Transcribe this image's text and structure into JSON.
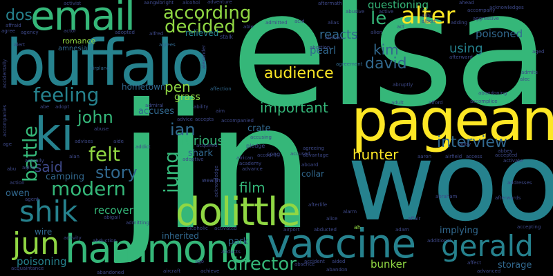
{
  "background": "#000000",
  "palette": {
    "purple": "#440154",
    "indigo": "#3e4989",
    "blue": "#31688e",
    "teal": "#26828e",
    "green": "#35b779",
    "lime": "#90d743",
    "yellow": "#fde725"
  },
  "words": [
    {
      "text": "elsa",
      "color": "#35b779",
      "vertical": false
    },
    {
      "text": "jin",
      "color": "#35b779",
      "vertical": false
    },
    {
      "text": "woo",
      "color": "#26828e",
      "vertical": false
    },
    {
      "text": "buffalo",
      "color": "#26828e",
      "vertical": false
    },
    {
      "text": "pageant",
      "color": "#fde725",
      "vertical": false
    },
    {
      "text": "email",
      "color": "#35b779",
      "vertical": false
    },
    {
      "text": "vaccine",
      "color": "#26828e",
      "vertical": false
    },
    {
      "text": "hammond",
      "color": "#35b779",
      "vertical": false
    },
    {
      "text": "ki",
      "color": "#26828e",
      "vertical": false
    },
    {
      "text": "dolittle",
      "color": "#90d743",
      "vertical": false
    },
    {
      "text": "jun",
      "color": "#90d743",
      "vertical": false
    },
    {
      "text": "shik",
      "color": "#26828e",
      "vertical": false
    },
    {
      "text": "gerald",
      "color": "#26828e",
      "vertical": false
    },
    {
      "text": "according",
      "color": "#90d743",
      "vertical": false
    },
    {
      "text": "decided",
      "color": "#90d743",
      "vertical": false
    },
    {
      "text": "alter",
      "color": "#fde725",
      "vertical": false
    },
    {
      "text": "feeling",
      "color": "#26828e",
      "vertical": false
    },
    {
      "text": "audience",
      "color": "#fde725",
      "vertical": false
    },
    {
      "text": "important",
      "color": "#35b779",
      "vertical": false
    },
    {
      "text": "modern",
      "color": "#35b779",
      "vertical": false
    },
    {
      "text": "director",
      "color": "#35b779",
      "vertical": false
    },
    {
      "text": "interview",
      "color": "#31688e",
      "vertical": false
    },
    {
      "text": "hunter",
      "color": "#fde725",
      "vertical": false
    },
    {
      "text": "felt",
      "color": "#90d743",
      "vertical": false
    },
    {
      "text": "story",
      "color": "#31688e",
      "vertical": false
    },
    {
      "text": "said",
      "color": "#3e4989",
      "vertical": false
    },
    {
      "text": "ian",
      "color": "#31688e",
      "vertical": false
    },
    {
      "text": "john",
      "color": "#35b779",
      "vertical": false
    },
    {
      "text": "jung",
      "color": "#35b779",
      "vertical": true
    },
    {
      "text": "battle",
      "color": "#35b779",
      "vertical": true
    },
    {
      "text": "dos",
      "color": "#26828e",
      "vertical": false
    },
    {
      "text": "kim",
      "color": "#31688e",
      "vertical": false
    },
    {
      "text": "david",
      "color": "#31688e",
      "vertical": false
    },
    {
      "text": "le",
      "color": "#35b779",
      "vertical": false
    },
    {
      "text": "pen",
      "color": "#90d743",
      "vertical": false
    },
    {
      "text": "film",
      "color": "#35b779",
      "vertical": false
    },
    {
      "text": "furious",
      "color": "#35b779",
      "vertical": false
    },
    {
      "text": "reacts",
      "color": "#31688e",
      "vertical": false
    },
    {
      "text": "using",
      "color": "#26828e",
      "vertical": false
    },
    {
      "text": "questioning",
      "color": "#35b779",
      "vertical": false
    },
    {
      "text": "poisoned",
      "color": "#31688e",
      "vertical": false
    },
    {
      "text": "pearl",
      "color": "#31688e",
      "vertical": false
    },
    {
      "text": "bunker",
      "color": "#90d743",
      "vertical": false
    },
    {
      "text": "recovery",
      "color": "#35b779",
      "vertical": false
    },
    {
      "text": "camping",
      "color": "#31688e",
      "vertical": false
    },
    {
      "text": "grass",
      "color": "#90d743",
      "vertical": false
    },
    {
      "text": "accuses",
      "color": "#31688e",
      "vertical": false
    },
    {
      "text": "shark",
      "color": "#31688e",
      "vertical": false
    },
    {
      "text": "crate",
      "color": "#31688e",
      "vertical": false
    },
    {
      "text": "inherited",
      "color": "#31688e",
      "vertical": false
    },
    {
      "text": "poisoning",
      "color": "#26828e",
      "vertical": false
    },
    {
      "text": "implying",
      "color": "#31688e",
      "vertical": false
    },
    {
      "text": "storage",
      "color": "#31688e",
      "vertical": false
    },
    {
      "text": "collar",
      "color": "#31688e",
      "vertical": false
    },
    {
      "text": "park",
      "color": "#31688e",
      "vertical": false
    },
    {
      "text": "owen",
      "color": "#31688e",
      "vertical": false
    },
    {
      "text": "wire",
      "color": "#31688e",
      "vertical": false
    },
    {
      "text": "hometown",
      "color": "#31688e",
      "vertical": false
    },
    {
      "text": "relieved",
      "color": "#26828e",
      "vertical": false
    },
    {
      "text": "romance",
      "color": "#90d743",
      "vertical": false
    },
    {
      "text": "amnesia",
      "color": "#31688e",
      "vertical": false
    },
    {
      "text": "activist",
      "color": "#3e4989",
      "vertical": false
    },
    {
      "text": "albright",
      "color": "#3e4989",
      "vertical": false
    },
    {
      "text": "alcohol",
      "color": "#3e4989",
      "vertical": false
    },
    {
      "text": "aftermath",
      "color": "#3e4989",
      "vertical": false
    },
    {
      "text": "abusive",
      "color": "#3e4989",
      "vertical": false
    },
    {
      "text": "ahead",
      "color": "#3e4989",
      "vertical": false
    },
    {
      "text": "acknowledges",
      "color": "#3e4989",
      "vertical": false
    },
    {
      "text": "accompany",
      "color": "#3e4989",
      "vertical": false
    },
    {
      "text": "agree",
      "color": "#3e4989",
      "vertical": false
    },
    {
      "text": "agency",
      "color": "#3e4989",
      "vertical": false
    },
    {
      "text": "adopted",
      "color": "#3e4989",
      "vertical": false
    },
    {
      "text": "alfred",
      "color": "#3e4989",
      "vertical": false
    },
    {
      "text": "admitted",
      "color": "#3e4989",
      "vertical": false
    },
    {
      "text": "alias",
      "color": "#3e4989",
      "vertical": false
    },
    {
      "text": "alerted",
      "color": "#3e4989",
      "vertical": false
    },
    {
      "text": "abortion",
      "color": "#3e4989",
      "vertical": false
    },
    {
      "text": "agrees",
      "color": "#31688e",
      "vertical": false
    },
    {
      "text": "airplane",
      "color": "#31688e",
      "vertical": false
    },
    {
      "text": "affection",
      "color": "#31688e",
      "vertical": false
    },
    {
      "text": "agreement",
      "color": "#31688e",
      "vertical": false
    },
    {
      "text": "afterward",
      "color": "#3e4989",
      "vertical": false
    },
    {
      "text": "abruptly",
      "color": "#3e4989",
      "vertical": false
    },
    {
      "text": "abandoning",
      "color": "#3e4989",
      "vertical": false
    },
    {
      "text": "accomplice",
      "color": "#3e4989",
      "vertical": false
    },
    {
      "text": "afford",
      "color": "#3e4989",
      "vertical": false
    },
    {
      "text": "alec",
      "color": "#3e4989",
      "vertical": false
    },
    {
      "text": "admits",
      "color": "#3e4989",
      "vertical": false
    },
    {
      "text": "adult",
      "color": "#3e4989",
      "vertical": false
    },
    {
      "text": "aged",
      "color": "#3e4989",
      "vertical": false
    },
    {
      "text": "abby",
      "color": "#3e4989",
      "vertical": false
    },
    {
      "text": "abbey",
      "color": "#3e4989",
      "vertical": false
    },
    {
      "text": "accepted",
      "color": "#3e4989",
      "vertical": false
    },
    {
      "text": "activate",
      "color": "#3e4989",
      "vertical": false
    },
    {
      "text": "airfield",
      "color": "#3e4989",
      "vertical": false
    },
    {
      "text": "agreeing",
      "color": "#3e4989",
      "vertical": false
    },
    {
      "text": "advantage",
      "color": "#3e4989",
      "vertical": false
    },
    {
      "text": "aboard",
      "color": "#3e4989",
      "vertical": false
    },
    {
      "text": "african",
      "color": "#3e4989",
      "vertical": false
    },
    {
      "text": "academy",
      "color": "#3e4989",
      "vertical": false
    },
    {
      "text": "advance",
      "color": "#3e4989",
      "vertical": false
    },
    {
      "text": "accused",
      "color": "#3e4989",
      "vertical": false
    },
    {
      "text": "abraham",
      "color": "#3e4989",
      "vertical": false
    },
    {
      "text": "afterwards",
      "color": "#3e4989",
      "vertical": false
    },
    {
      "text": "addresses",
      "color": "#3e4989",
      "vertical": false
    },
    {
      "text": "afterlife",
      "color": "#3e4989",
      "vertical": false
    },
    {
      "text": "alarm",
      "color": "#3e4989",
      "vertical": false
    },
    {
      "text": "alice",
      "color": "#3e4989",
      "vertical": false
    },
    {
      "text": "affair",
      "color": "#3e4989",
      "vertical": false
    },
    {
      "text": "accepting",
      "color": "#3e4989",
      "vertical": false
    },
    {
      "text": "adam",
      "color": "#3e4989",
      "vertical": false
    },
    {
      "text": "ah",
      "color": "#90d743",
      "vertical": false
    },
    {
      "text": "abducted",
      "color": "#3e4989",
      "vertical": false
    },
    {
      "text": "additional",
      "color": "#3e4989",
      "vertical": false
    },
    {
      "text": "affect",
      "color": "#3e4989",
      "vertical": false
    },
    {
      "text": "advanced",
      "color": "#3e4989",
      "vertical": false
    },
    {
      "text": "aided",
      "color": "#3e4989",
      "vertical": false
    },
    {
      "text": "absence",
      "color": "#3e4989",
      "vertical": false
    },
    {
      "text": "abandon",
      "color": "#3e4989",
      "vertical": false
    },
    {
      "text": "accident",
      "color": "#3e4989",
      "vertical": false
    },
    {
      "text": "abducts",
      "color": "#3e4989",
      "vertical": false
    },
    {
      "text": "achieve",
      "color": "#3e4989",
      "vertical": false
    },
    {
      "text": "ago",
      "color": "#3e4989",
      "vertical": false
    },
    {
      "text": "aircraft",
      "color": "#3e4989",
      "vertical": false
    },
    {
      "text": "abandoned",
      "color": "#3e4989",
      "vertical": false
    },
    {
      "text": "acquaintance",
      "color": "#3e4989",
      "vertical": false
    },
    {
      "text": "activity",
      "color": "#3e4989",
      "vertical": false
    },
    {
      "text": "abduction",
      "color": "#3e4989",
      "vertical": false
    },
    {
      "text": "alcoholic",
      "color": "#3e4989",
      "vertical": false
    },
    {
      "text": "activated",
      "color": "#3e4989",
      "vertical": false
    },
    {
      "text": "admitting",
      "color": "#3e4989",
      "vertical": false
    },
    {
      "text": "abigail",
      "color": "#3e4989",
      "vertical": false
    },
    {
      "text": "agent",
      "color": "#3e4989",
      "vertical": false
    },
    {
      "text": "accompanies",
      "color": "#3e4989",
      "vertical": true
    },
    {
      "text": "accidentally",
      "color": "#3e4989",
      "vertical": true
    },
    {
      "text": "abe",
      "color": "#3e4989",
      "vertical": false
    },
    {
      "text": "adopt",
      "color": "#3e4989",
      "vertical": false
    },
    {
      "text": "admiral",
      "color": "#3e4989",
      "vertical": false
    },
    {
      "text": "ability",
      "color": "#3e4989",
      "vertical": false
    },
    {
      "text": "aim",
      "color": "#3e4989",
      "vertical": false
    },
    {
      "text": "advice",
      "color": "#3e4989",
      "vertical": false
    },
    {
      "text": "accepts",
      "color": "#3e4989",
      "vertical": false
    },
    {
      "text": "accompanied",
      "color": "#3e4989",
      "vertical": false
    },
    {
      "text": "accusing",
      "color": "#3e4989",
      "vertical": false
    },
    {
      "text": "abuse",
      "color": "#3e4989",
      "vertical": false
    },
    {
      "text": "aide",
      "color": "#3e4989",
      "vertical": false
    },
    {
      "text": "addict",
      "color": "#3e4989",
      "vertical": false
    },
    {
      "text": "acquired",
      "color": "#3e4989",
      "vertical": false
    },
    {
      "text": "advises",
      "color": "#3e4989",
      "vertical": false
    },
    {
      "text": "adoptive",
      "color": "#3e4989",
      "vertical": false
    },
    {
      "text": "pledge",
      "color": "#3e4989",
      "vertical": false
    },
    {
      "text": "song",
      "color": "#3e4989",
      "vertical": false
    },
    {
      "text": "alan",
      "color": "#3e4989",
      "vertical": false
    },
    {
      "text": "aging",
      "color": "#3e4989",
      "vertical": false
    },
    {
      "text": "abu",
      "color": "#3e4989",
      "vertical": false
    },
    {
      "text": "actually",
      "color": "#3e4989",
      "vertical": false
    },
    {
      "text": "action",
      "color": "#3e4989",
      "vertical": false
    },
    {
      "text": "age",
      "color": "#3e4989",
      "vertical": false
    },
    {
      "text": "affraid",
      "color": "#3e4989",
      "vertical": false
    },
    {
      "text": "alert",
      "color": "#3e4989",
      "vertical": false
    },
    {
      "text": "actor",
      "color": "#3e4989",
      "vertical": false
    },
    {
      "text": "alexander",
      "color": "#3e4989",
      "vertical": true
    },
    {
      "text": "stalk",
      "color": "#3e4989",
      "vertical": false
    },
    {
      "text": "able",
      "color": "#3e4989",
      "vertical": false
    },
    {
      "text": "acid",
      "color": "#3e4989",
      "vertical": false
    },
    {
      "text": "act",
      "color": "#3e4989",
      "vertical": false
    },
    {
      "text": "alien",
      "color": "#3e4989",
      "vertical": false
    },
    {
      "text": "active",
      "color": "#3e4989",
      "vertical": false
    },
    {
      "text": "alibi",
      "color": "#3e4989",
      "vertical": false
    },
    {
      "text": "albert",
      "color": "#3e4989",
      "vertical": false
    },
    {
      "text": "adding",
      "color": "#3e4989",
      "vertical": false
    },
    {
      "text": "aggressive",
      "color": "#3e4989",
      "vertical": false
    },
    {
      "text": "wealth",
      "color": "#3e4989",
      "vertical": false
    },
    {
      "text": "acknowledge",
      "color": "#3e4989",
      "vertical": true
    },
    {
      "text": "adventure",
      "color": "#3e4989",
      "vertical": false
    },
    {
      "text": "account",
      "color": "#3e4989",
      "vertical": false
    },
    {
      "text": "aaron",
      "color": "#3e4989",
      "vertical": false
    },
    {
      "text": "access",
      "color": "#3e4989",
      "vertical": false
    },
    {
      "text": "airport",
      "color": "#3e4989",
      "vertical": false
    },
    {
      "text": "aang",
      "color": "#3e4989",
      "vertical": false
    }
  ]
}
